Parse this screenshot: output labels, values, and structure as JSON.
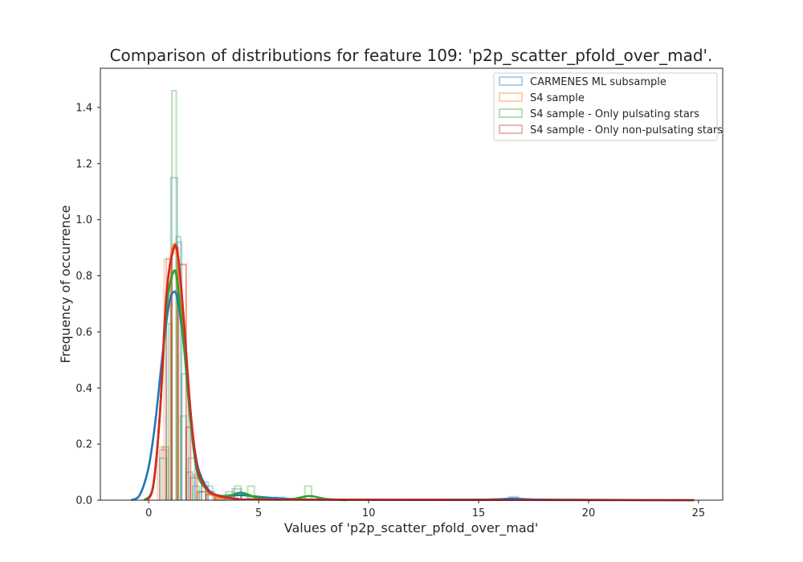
{
  "chart_data": {
    "type": "histogram",
    "title": "Comparison of distributions for feature 109: 'p2p_scatter_pfold_over_mad'.",
    "xlabel": "Values of 'p2p_scatter_pfold_over_mad'",
    "ylabel": "Frequency of occurrence",
    "xlim": [
      -2.2,
      26.1
    ],
    "ylim": [
      0,
      1.54
    ],
    "xticks": [
      "0",
      "5",
      "10",
      "15",
      "20",
      "25"
    ],
    "xtick_values": [
      0,
      5,
      10,
      15,
      20,
      25
    ],
    "yticks": [
      "0.0",
      "0.2",
      "0.4",
      "0.6",
      "0.8",
      "1.0",
      "1.2",
      "1.4"
    ],
    "ytick_values": [
      0,
      0.2,
      0.4,
      0.6,
      0.8,
      1.0,
      1.2,
      1.4
    ],
    "grid": false,
    "legend_position": "top-right",
    "series": [
      {
        "name": "CARMENES ML subsample",
        "color": "#1f77b4",
        "bins": [
          [
            0.5,
            0.8,
            0.15
          ],
          [
            0.8,
            1.0,
            0.73
          ],
          [
            1.0,
            1.3,
            1.15
          ],
          [
            1.3,
            1.5,
            0.92
          ],
          [
            1.5,
            1.8,
            0.45
          ],
          [
            1.8,
            2.1,
            0.15
          ],
          [
            2.1,
            2.4,
            0.09
          ],
          [
            2.4,
            2.7,
            0.065
          ],
          [
            2.7,
            3.0,
            0.03
          ],
          [
            3.0,
            3.5,
            0.01
          ],
          [
            3.5,
            3.8,
            0.02
          ],
          [
            3.8,
            4.2,
            0.04
          ],
          [
            4.2,
            4.6,
            0.02
          ],
          [
            4.6,
            5.4,
            0.005
          ],
          [
            5.4,
            5.8,
            0.01
          ],
          [
            5.8,
            6.2,
            0.01
          ],
          [
            16.4,
            16.8,
            0.012
          ]
        ],
        "kde": [
          [
            -0.8,
            0.0
          ],
          [
            -0.4,
            0.02
          ],
          [
            0.0,
            0.12
          ],
          [
            0.3,
            0.28
          ],
          [
            0.6,
            0.5
          ],
          [
            0.9,
            0.69
          ],
          [
            1.1,
            0.74
          ],
          [
            1.3,
            0.72
          ],
          [
            1.6,
            0.55
          ],
          [
            1.9,
            0.3
          ],
          [
            2.2,
            0.13
          ],
          [
            2.6,
            0.05
          ],
          [
            3.0,
            0.02
          ],
          [
            3.5,
            0.015
          ],
          [
            4.2,
            0.018
          ],
          [
            5.0,
            0.012
          ],
          [
            6.0,
            0.006
          ],
          [
            8.0,
            0.002
          ],
          [
            15.0,
            0.002
          ],
          [
            16.6,
            0.006
          ],
          [
            18.0,
            0.002
          ],
          [
            24.8,
            0.0
          ]
        ]
      },
      {
        "name": "S4 sample",
        "color": "#ff7f0e",
        "bins": [
          [
            0.4,
            0.7,
            0.19
          ],
          [
            0.7,
            1.0,
            0.86
          ],
          [
            1.0,
            1.3,
            0.88
          ],
          [
            1.3,
            1.7,
            0.84
          ],
          [
            1.7,
            1.9,
            0.26
          ],
          [
            1.9,
            2.2,
            0.09
          ],
          [
            2.2,
            2.6,
            0.03
          ],
          [
            2.6,
            3.0,
            0.02
          ],
          [
            3.0,
            4.0,
            0.005
          ]
        ],
        "kde": [
          [
            -0.1,
            0.0
          ],
          [
            0.2,
            0.05
          ],
          [
            0.5,
            0.3
          ],
          [
            0.8,
            0.72
          ],
          [
            1.1,
            0.9
          ],
          [
            1.3,
            0.87
          ],
          [
            1.6,
            0.62
          ],
          [
            1.9,
            0.3
          ],
          [
            2.2,
            0.11
          ],
          [
            2.6,
            0.04
          ],
          [
            3.0,
            0.015
          ],
          [
            4.0,
            0.005
          ],
          [
            6.0,
            0.002
          ],
          [
            24.8,
            0.0
          ]
        ]
      },
      {
        "name": "S4 sample - Only pulsating stars",
        "color": "#2ca02c",
        "bins": [
          [
            0.6,
            0.9,
            0.19
          ],
          [
            0.9,
            1.05,
            0.63
          ],
          [
            1.05,
            1.25,
            1.46
          ],
          [
            1.25,
            1.45,
            0.94
          ],
          [
            1.45,
            1.7,
            0.3
          ],
          [
            1.7,
            2.0,
            0.1
          ],
          [
            2.0,
            2.3,
            0.05
          ],
          [
            2.3,
            2.6,
            0.03
          ],
          [
            2.6,
            2.9,
            0.05
          ],
          [
            2.9,
            3.5,
            0.0
          ],
          [
            3.5,
            3.9,
            0.03
          ],
          [
            3.9,
            4.2,
            0.05
          ],
          [
            4.2,
            4.5,
            0.02
          ],
          [
            4.5,
            4.8,
            0.05
          ],
          [
            7.1,
            7.4,
            0.05
          ]
        ],
        "kde": [
          [
            -0.2,
            0.0
          ],
          [
            0.2,
            0.05
          ],
          [
            0.5,
            0.3
          ],
          [
            0.8,
            0.68
          ],
          [
            1.1,
            0.81
          ],
          [
            1.3,
            0.78
          ],
          [
            1.6,
            0.55
          ],
          [
            1.9,
            0.28
          ],
          [
            2.2,
            0.1
          ],
          [
            2.6,
            0.04
          ],
          [
            3.0,
            0.02
          ],
          [
            3.6,
            0.015
          ],
          [
            4.2,
            0.027
          ],
          [
            4.8,
            0.012
          ],
          [
            5.5,
            0.003
          ],
          [
            6.5,
            0.004
          ],
          [
            7.3,
            0.015
          ],
          [
            8.0,
            0.005
          ],
          [
            9.0,
            0.0
          ]
        ]
      },
      {
        "name": "S4 sample - Only non-pulsating stars",
        "color": "#d62728",
        "bins": [
          [
            0.5,
            0.8,
            0.18
          ],
          [
            0.8,
            1.05,
            0.86
          ],
          [
            1.05,
            1.35,
            0.9
          ],
          [
            1.35,
            1.7,
            0.84
          ],
          [
            1.7,
            1.9,
            0.26
          ],
          [
            1.9,
            2.2,
            0.08
          ],
          [
            2.2,
            2.6,
            0.03
          ],
          [
            2.6,
            3.0,
            0.02
          ],
          [
            3.0,
            4.0,
            0.005
          ]
        ],
        "kde": [
          [
            -0.1,
            0.0
          ],
          [
            0.2,
            0.05
          ],
          [
            0.5,
            0.3
          ],
          [
            0.8,
            0.73
          ],
          [
            1.15,
            0.9
          ],
          [
            1.35,
            0.86
          ],
          [
            1.6,
            0.64
          ],
          [
            1.9,
            0.32
          ],
          [
            2.2,
            0.12
          ],
          [
            2.6,
            0.045
          ],
          [
            3.0,
            0.02
          ],
          [
            4.0,
            0.005
          ],
          [
            6.0,
            0.002
          ],
          [
            24.8,
            0.0
          ]
        ]
      }
    ]
  }
}
